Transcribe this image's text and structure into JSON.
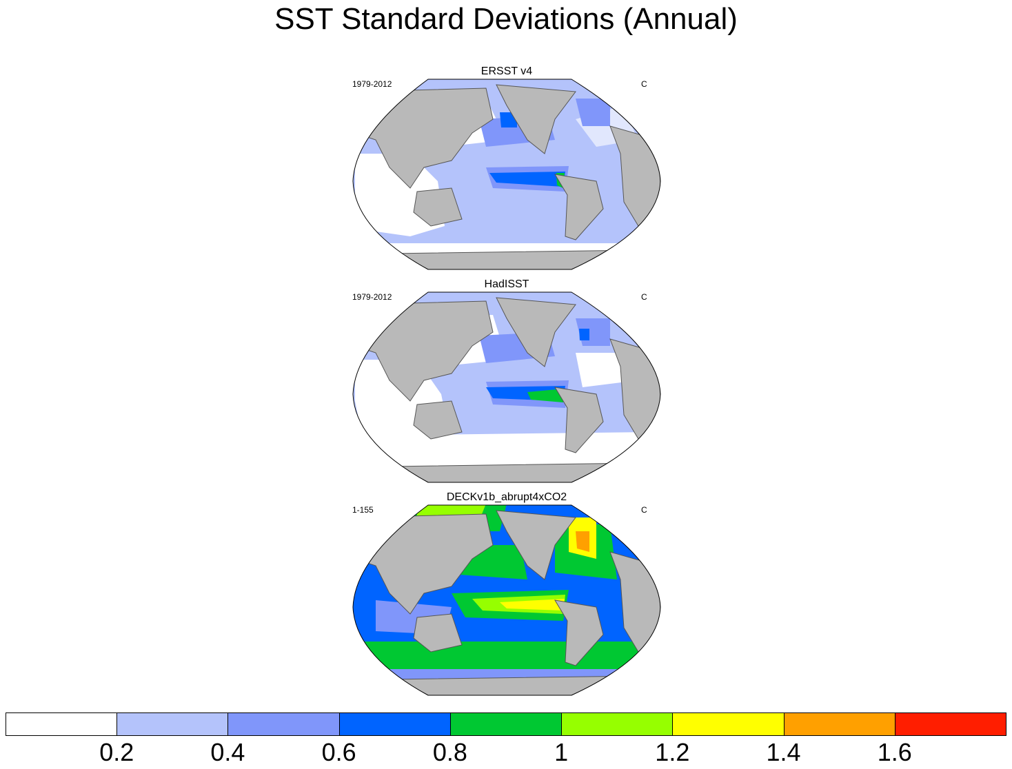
{
  "title": "SST Standard Deviations (Annual)",
  "panels": [
    {
      "title": "ERSST v4",
      "left_label": "1979-2012",
      "right_label": "C"
    },
    {
      "title": "HadISST",
      "left_label": "1979-2012",
      "right_label": "C"
    },
    {
      "title": "DECKv1b_abrupt4xCO2",
      "left_label": "1-155",
      "right_label": "C"
    }
  ],
  "colorbar": {
    "levels": [
      "0.2",
      "0.4",
      "0.6",
      "0.8",
      "1",
      "1.2",
      "1.4",
      "1.6"
    ],
    "colors": [
      "#ffffff",
      "#b4c3fb",
      "#8096fa",
      "#0064ff",
      "#00c832",
      "#96ff00",
      "#ffff00",
      "#ffa000",
      "#ff1e00"
    ]
  },
  "colors": {
    "land": "#b9b9b9",
    "coast": "#555555",
    "ocean_low": "#ffffff"
  }
}
